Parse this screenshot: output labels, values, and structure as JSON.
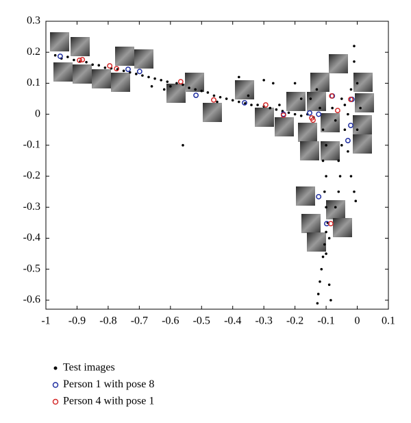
{
  "chart_data": {
    "type": "scatter",
    "xlim": [
      -1,
      0.1
    ],
    "xticks": [
      -1,
      -0.9,
      -0.8,
      -0.7,
      -0.6,
      -0.5,
      -0.4,
      -0.3,
      -0.2,
      -0.1,
      0,
      0.1
    ],
    "ylim": [
      -0.629,
      0.3
    ],
    "yticks": [
      0.3,
      0.2,
      0.1,
      0,
      -0.1,
      -0.2,
      -0.3,
      -0.4,
      -0.5,
      -0.6
    ],
    "series": [
      {
        "name": "Test images",
        "color": "#000000",
        "marker": "dot",
        "x": [
          -0.97,
          -0.95,
          -0.93,
          -0.91,
          -0.89,
          -0.87,
          -0.85,
          -0.83,
          -0.81,
          -0.79,
          -0.77,
          -0.75,
          -0.73,
          -0.71,
          -0.69,
          -0.67,
          -0.65,
          -0.63,
          -0.61,
          -0.6,
          -0.58,
          -0.56,
          -0.54,
          -0.52,
          -0.5,
          -0.48,
          -0.46,
          -0.44,
          -0.42,
          -0.4,
          -0.38,
          -0.36,
          -0.34,
          -0.32,
          -0.3,
          -0.28,
          -0.26,
          -0.24,
          -0.22,
          -0.2,
          -0.18,
          -0.16,
          -0.14,
          -0.66,
          -0.62,
          -0.38,
          -0.3,
          -0.27,
          -0.2,
          -0.18,
          -0.56,
          -0.45,
          -0.35,
          -0.25,
          -0.11,
          -0.1,
          -0.11,
          -0.1,
          -0.105,
          -0.1,
          -0.095,
          -0.1,
          -0.105,
          -0.11,
          -0.115,
          -0.12,
          -0.125,
          -0.128,
          -0.09,
          -0.1,
          -0.085,
          -0.09,
          -0.04,
          -0.05,
          -0.06,
          -0.055,
          -0.06,
          -0.07,
          -0.03,
          -0.02,
          -0.01,
          -0.005,
          -0.01,
          -0.01,
          0.0,
          -0.02,
          -0.05,
          -0.08,
          -0.03,
          -0.07,
          -0.04,
          0.01,
          0.0,
          -0.12,
          -0.15,
          -0.13
        ],
        "y": [
          0.19,
          0.18,
          0.185,
          0.175,
          0.17,
          0.168,
          0.16,
          0.158,
          0.15,
          0.148,
          0.145,
          0.14,
          0.135,
          0.13,
          0.125,
          0.12,
          0.115,
          0.11,
          0.105,
          0.09,
          0.1,
          0.095,
          0.085,
          0.08,
          0.075,
          0.07,
          0.06,
          0.055,
          0.05,
          0.045,
          0.04,
          0.035,
          0.03,
          0.03,
          0.025,
          0.02,
          0.015,
          0.01,
          0.005,
          0.0,
          -0.005,
          0.0,
          -0.01,
          0.09,
          0.08,
          0.12,
          0.11,
          0.1,
          0.1,
          0.05,
          -0.1,
          0.04,
          0.06,
          0.03,
          -0.05,
          -0.1,
          -0.15,
          -0.2,
          -0.25,
          -0.3,
          -0.35,
          -0.38,
          -0.42,
          -0.46,
          -0.5,
          -0.54,
          -0.58,
          -0.61,
          -0.4,
          -0.45,
          -0.6,
          -0.55,
          -0.05,
          -0.1,
          -0.15,
          -0.2,
          -0.25,
          -0.3,
          -0.12,
          -0.2,
          -0.25,
          -0.28,
          0.22,
          0.17,
          0.1,
          0.08,
          0.05,
          0.02,
          0.0,
          -0.02,
          0.03,
          0.02,
          -0.05,
          0.02,
          0.05,
          0.08
        ]
      },
      {
        "name": "Person 1 with pose 8",
        "color": "#1f2ea0",
        "marker": "circle",
        "x": [
          -0.954,
          -0.736,
          -0.699,
          -0.518,
          -0.362,
          -0.237,
          -0.153,
          -0.124,
          -0.124,
          -0.098,
          -0.021,
          -0.03,
          -0.08,
          -0.017
        ],
        "y": [
          0.187,
          0.145,
          0.138,
          0.061,
          0.037,
          0.0,
          0.004,
          0.0,
          -0.266,
          -0.353,
          -0.036,
          -0.085,
          0.059,
          0.048
        ]
      },
      {
        "name": "Person 4 with pose 1",
        "color": "#d42a2a",
        "marker": "circle",
        "x": [
          -0.892,
          -0.883,
          -0.795,
          -0.773,
          -0.567,
          -0.461,
          -0.294,
          -0.237,
          -0.146,
          -0.142,
          -0.063,
          -0.082,
          -0.021,
          -0.085
        ],
        "y": [
          0.174,
          0.176,
          0.156,
          0.147,
          0.105,
          0.046,
          0.03,
          -0.003,
          -0.012,
          -0.019,
          0.012,
          0.059,
          0.048,
          -0.353
        ]
      }
    ]
  }
}
